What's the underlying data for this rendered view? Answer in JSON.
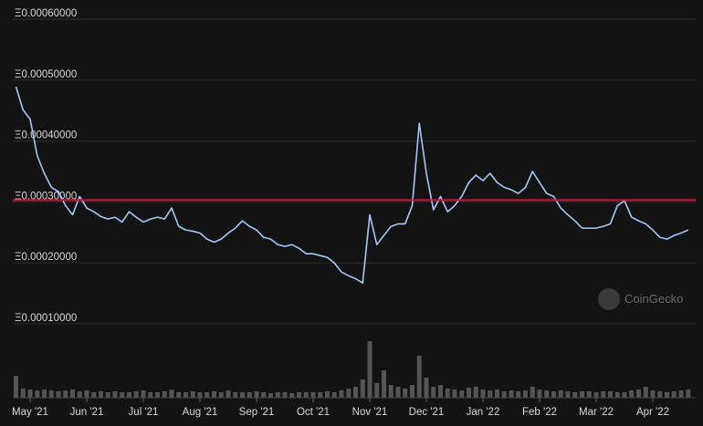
{
  "chart_data": {
    "type": "line",
    "categories": [
      null,
      null,
      "May '21",
      null,
      null,
      null,
      null,
      null,
      null,
      null,
      "Jun '21",
      null,
      null,
      null,
      null,
      null,
      null,
      null,
      "Jul '21",
      null,
      null,
      null,
      null,
      null,
      null,
      null,
      "Aug '21",
      null,
      null,
      null,
      null,
      null,
      null,
      null,
      "Sep '21",
      null,
      null,
      null,
      null,
      null,
      null,
      null,
      "Oct '21",
      null,
      null,
      null,
      null,
      null,
      null,
      null,
      "Nov '21",
      null,
      null,
      null,
      null,
      null,
      null,
      null,
      "Dec '21",
      null,
      null,
      null,
      null,
      null,
      null,
      null,
      "Jan '22",
      null,
      null,
      null,
      null,
      null,
      null,
      null,
      "Feb '22",
      null,
      null,
      null,
      null,
      null,
      null,
      null,
      "Mar '22",
      null,
      null,
      null,
      null,
      null,
      null,
      null,
      "Apr '22",
      null,
      null,
      null,
      null,
      null
    ],
    "series": [
      {
        "color": "#a7c8f2",
        "values": [
          0.000489,
          0.000451,
          0.000436,
          0.000376,
          0.000347,
          0.000324,
          0.000317,
          0.000294,
          0.000279,
          0.000309,
          0.00029,
          0.000284,
          0.000276,
          0.000272,
          0.000275,
          0.000267,
          0.000284,
          0.000275,
          0.000267,
          0.000272,
          0.000275,
          0.000272,
          0.00029,
          0.00026,
          0.000254,
          0.000252,
          0.000249,
          0.000239,
          0.000234,
          0.000239,
          0.000249,
          0.000257,
          0.000269,
          0.00026,
          0.000254,
          0.000242,
          0.000239,
          0.00023,
          0.000227,
          0.00023,
          0.000224,
          0.000215,
          0.000215,
          0.000212,
          0.000209,
          0.0002,
          0.000185,
          0.000179,
          0.000174,
          0.000167,
          0.000279,
          0.00023,
          0.000245,
          0.00026,
          0.000264,
          0.000264,
          0.000294,
          0.000429,
          0.000347,
          0.000287,
          0.000309,
          0.000284,
          0.000294,
          0.000309,
          0.000332,
          0.000344,
          0.000335,
          0.000347,
          0.000332,
          0.000324,
          0.00032,
          0.000314,
          0.000324,
          0.00035,
          0.000332,
          0.000314,
          0.000309,
          0.00029,
          0.000279,
          0.000269,
          0.000257,
          0.000257,
          0.000257,
          0.00026,
          0.000264,
          0.000294,
          0.000302,
          0.000275,
          0.000269,
          0.000264,
          0.000254,
          0.000242,
          0.000239,
          0.000245,
          0.000249,
          0.000254
        ]
      }
    ],
    "volume": {
      "color": "#555555",
      "values": [
        24,
        10,
        9,
        8,
        9,
        8,
        7,
        8,
        9,
        7,
        8,
        6,
        7,
        6,
        7,
        6,
        6,
        7,
        8,
        6,
        6,
        7,
        9,
        6,
        6,
        7,
        6,
        6,
        7,
        6,
        8,
        6,
        6,
        6,
        7,
        6,
        5,
        6,
        6,
        5,
        6,
        6,
        6,
        6,
        7,
        6,
        8,
        10,
        12,
        20,
        62,
        16,
        30,
        14,
        12,
        10,
        14,
        46,
        22,
        12,
        14,
        10,
        9,
        8,
        11,
        12,
        9,
        8,
        9,
        7,
        8,
        7,
        8,
        12,
        9,
        8,
        7,
        8,
        7,
        6,
        7,
        7,
        6,
        7,
        7,
        6,
        6,
        8,
        9,
        12,
        8,
        7,
        6,
        7,
        8,
        9
      ]
    },
    "ylim": [
      0.0001,
      0.0006
    ],
    "yticks": [
      {
        "value": 0.0001,
        "label": "Ξ0.00010000"
      },
      {
        "value": 0.0002,
        "label": "Ξ0.00020000"
      },
      {
        "value": 0.0003,
        "label": "Ξ0.00030000"
      },
      {
        "value": 0.0004,
        "label": "Ξ0.00040000"
      },
      {
        "value": 0.0005,
        "label": "Ξ0.00050000"
      },
      {
        "value": 0.0006,
        "label": "Ξ0.00060000"
      }
    ],
    "grid": true,
    "reference_line": {
      "value": 0.000303,
      "color": "#c8163a"
    },
    "watermark": "CoinGecko"
  }
}
